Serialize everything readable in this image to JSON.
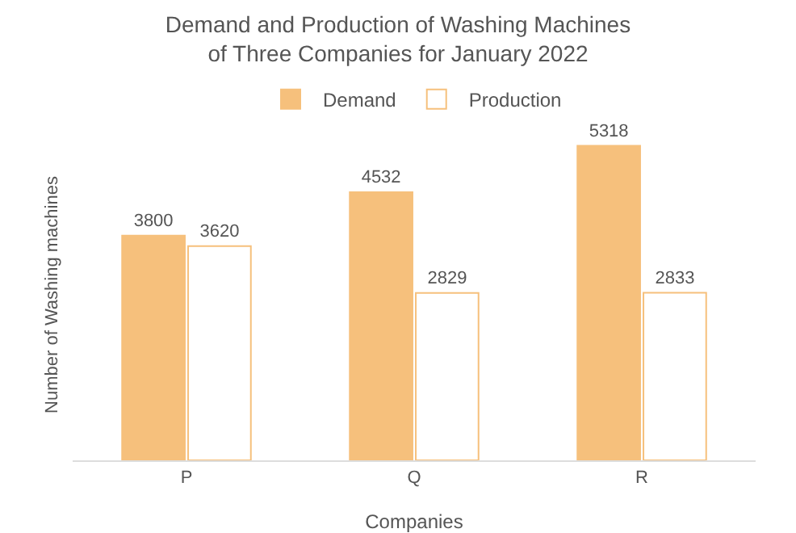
{
  "chart_data": {
    "type": "bar",
    "title": "Demand and Production of Washing Machines of Three Companies for January 2022",
    "xlabel": "Companies",
    "ylabel": "Number of Washing machines",
    "categories": [
      "P",
      "Q",
      "R"
    ],
    "series": [
      {
        "name": "Demand",
        "color": "#f6c07c",
        "values": [
          3800,
          4532,
          5318
        ]
      },
      {
        "name": "Production",
        "color": "#ffffff",
        "values": [
          3620,
          2829,
          2833
        ]
      }
    ],
    "data_labels": true,
    "legend": "top",
    "grid": false
  }
}
